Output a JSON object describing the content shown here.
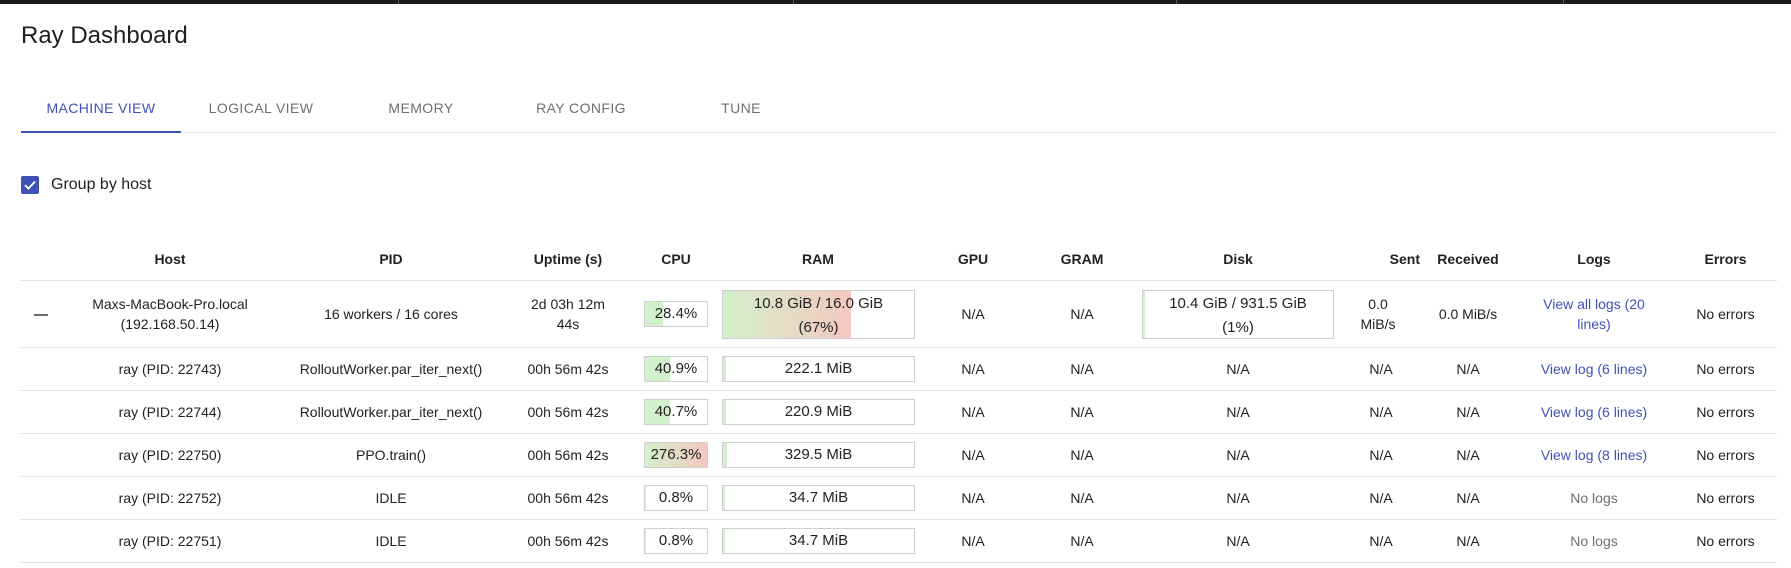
{
  "app": {
    "title": "Ray Dashboard"
  },
  "colors": {
    "accent": "#3f51b5",
    "bar_green": "#d3f0cc",
    "bar_red": "#f4c8c0"
  },
  "tabs": [
    {
      "label": "MACHINE VIEW",
      "active": true
    },
    {
      "label": "LOGICAL VIEW",
      "active": false
    },
    {
      "label": "MEMORY",
      "active": false
    },
    {
      "label": "RAY CONFIG",
      "active": false
    },
    {
      "label": "TUNE",
      "active": false
    }
  ],
  "group_by_host": {
    "label": "Group by host",
    "checked": true
  },
  "table": {
    "headers": {
      "host": "Host",
      "pid": "PID",
      "uptime": "Uptime (s)",
      "cpu": "CPU",
      "ram": "RAM",
      "gpu": "GPU",
      "gram": "GRAM",
      "disk": "Disk",
      "sent": "Sent",
      "received": "Received",
      "logs": "Logs",
      "errors": "Errors"
    },
    "host_row": {
      "collapse_icon": "minus-icon",
      "host_line1": "Maxs-MacBook-Pro.local",
      "host_line2": "(192.168.50.14)",
      "pid": "16 workers / 16 cores",
      "uptime_line1": "2d 03h 12m",
      "uptime_line2": "44s",
      "cpu": {
        "label": "28.4%",
        "level": 0.284
      },
      "ram": {
        "line1": "10.8 GiB / 16.0 GiB",
        "line2": "(67%)",
        "level": 0.67
      },
      "gpu": "N/A",
      "gram": "N/A",
      "disk": {
        "line1": "10.4 GiB / 931.5 GiB",
        "line2": "(1%)",
        "level": 0.01
      },
      "sent_line1": "0.0",
      "sent_line2": "MiB/s",
      "received": "0.0 MiB/s",
      "logs_line1": "View all logs (20",
      "logs_line2": "lines)",
      "errors": "No errors"
    },
    "workers": [
      {
        "host": "ray (PID: 22743)",
        "pid": "RolloutWorker.par_iter_next()",
        "uptime": "00h 56m 42s",
        "cpu": {
          "label": "40.9%",
          "level": 0.409
        },
        "ram": {
          "label": "222.1 MiB",
          "level": 0.0136
        },
        "gpu": "N/A",
        "gram": "N/A",
        "disk": "N/A",
        "sent": "N/A",
        "received": "N/A",
        "logs": "View log (6 lines)",
        "logs_link": true,
        "errors": "No errors"
      },
      {
        "host": "ray (PID: 22744)",
        "pid": "RolloutWorker.par_iter_next()",
        "uptime": "00h 56m 42s",
        "cpu": {
          "label": "40.7%",
          "level": 0.407
        },
        "ram": {
          "label": "220.9 MiB",
          "level": 0.0135
        },
        "gpu": "N/A",
        "gram": "N/A",
        "disk": "N/A",
        "sent": "N/A",
        "received": "N/A",
        "logs": "View log (6 lines)",
        "logs_link": true,
        "errors": "No errors"
      },
      {
        "host": "ray (PID: 22750)",
        "pid": "PPO.train()",
        "uptime": "00h 56m 42s",
        "cpu": {
          "label": "276.3%",
          "level": 2.763
        },
        "ram": {
          "label": "329.5 MiB",
          "level": 0.0201
        },
        "gpu": "N/A",
        "gram": "N/A",
        "disk": "N/A",
        "sent": "N/A",
        "received": "N/A",
        "logs": "View log (8 lines)",
        "logs_link": true,
        "errors": "No errors"
      },
      {
        "host": "ray (PID: 22752)",
        "pid": "IDLE",
        "uptime": "00h 56m 42s",
        "cpu": {
          "label": "0.8%",
          "level": 0.008
        },
        "ram": {
          "label": "34.7 MiB",
          "level": 0.0021
        },
        "gpu": "N/A",
        "gram": "N/A",
        "disk": "N/A",
        "sent": "N/A",
        "received": "N/A",
        "logs": "No logs",
        "logs_link": false,
        "errors": "No errors"
      },
      {
        "host": "ray (PID: 22751)",
        "pid": "IDLE",
        "uptime": "00h 56m 42s",
        "cpu": {
          "label": "0.8%",
          "level": 0.008
        },
        "ram": {
          "label": "34.7 MiB",
          "level": 0.0021
        },
        "gpu": "N/A",
        "gram": "N/A",
        "disk": "N/A",
        "sent": "N/A",
        "received": "N/A",
        "logs": "No logs",
        "logs_link": false,
        "errors": "No errors"
      }
    ]
  }
}
